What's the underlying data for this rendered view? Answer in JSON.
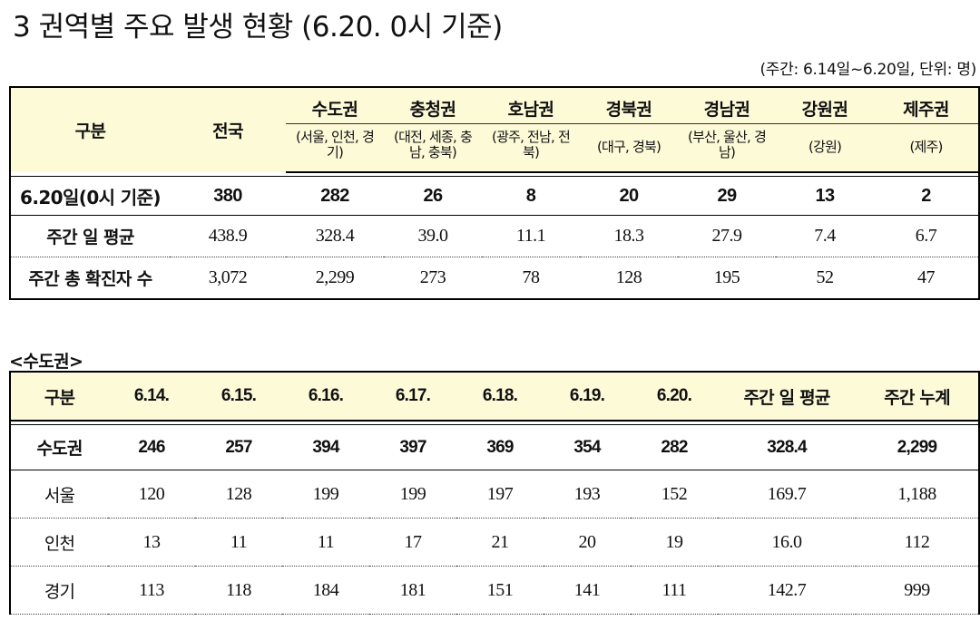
{
  "title": "3  권역별 주요 발생 현황 (6.20. 0시 기준)",
  "period": "(주간: 6.14일~6.20일, 단위: 명)",
  "summary_table": {
    "corner_label": "구분",
    "national_label": "전국",
    "regions": [
      {
        "name": "수도권",
        "sub": "(서울, 인천, 경기)"
      },
      {
        "name": "충청권",
        "sub": "(대전, 세종, 충남, 충북)"
      },
      {
        "name": "호남권",
        "sub": "(광주, 전남, 전북)"
      },
      {
        "name": "경북권",
        "sub": "(대구, 경북)"
      },
      {
        "name": "경남권",
        "sub": "(부산, 울산, 경남)"
      },
      {
        "name": "강원권",
        "sub": "(강원)"
      },
      {
        "name": "제주권",
        "sub": "(제주)"
      }
    ],
    "rows": [
      {
        "label": "6.20일(0시 기준)",
        "values": [
          "380",
          "282",
          "26",
          "8",
          "20",
          "29",
          "13",
          "2"
        ]
      },
      {
        "label": "주간 일 평균",
        "values": [
          "438.9",
          "328.4",
          "39.0",
          "11.1",
          "18.3",
          "27.9",
          "7.4",
          "6.7"
        ]
      },
      {
        "label": "주간 총 확진자 수",
        "values": [
          "3,072",
          "2,299",
          "273",
          "78",
          "128",
          "195",
          "52",
          "47"
        ]
      }
    ]
  },
  "capital_section_label": "<수도권>",
  "capital_table": {
    "headers": [
      "구분",
      "6.14.",
      "6.15.",
      "6.16.",
      "6.17.",
      "6.18.",
      "6.19.",
      "6.20.",
      "주간 일 평균",
      "주간 누계"
    ],
    "rows": [
      {
        "label": "수도권",
        "values": [
          "246",
          "257",
          "394",
          "397",
          "369",
          "354",
          "282",
          "328.4",
          "2,299"
        ]
      },
      {
        "label": "서울",
        "values": [
          "120",
          "128",
          "199",
          "199",
          "197",
          "193",
          "152",
          "169.7",
          "1,188"
        ]
      },
      {
        "label": "인천",
        "values": [
          "13",
          "11",
          "11",
          "17",
          "21",
          "20",
          "19",
          "16.0",
          "112"
        ]
      },
      {
        "label": "경기",
        "values": [
          "113",
          "118",
          "184",
          "181",
          "151",
          "141",
          "111",
          "142.7",
          "999"
        ]
      }
    ]
  }
}
